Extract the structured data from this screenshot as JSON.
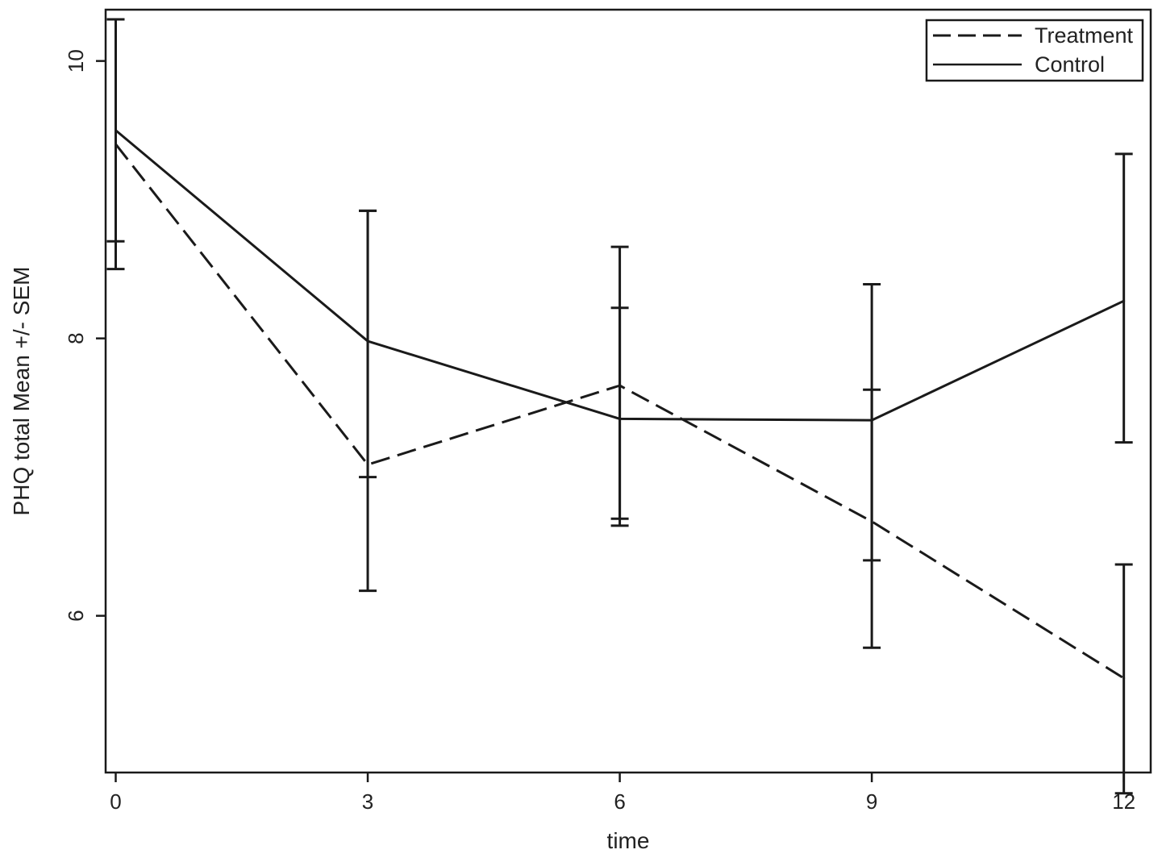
{
  "chart_data": {
    "type": "line",
    "xlabel": "time",
    "ylabel": "PHQ total Mean +/- SEM",
    "x": [
      0,
      3,
      6,
      9,
      12
    ],
    "x_ticks": [
      "0",
      "3",
      "6",
      "9",
      "12"
    ],
    "y_ticks": [
      "6",
      "8",
      "10"
    ],
    "xlim": [
      -0.12,
      12.32
    ],
    "ylim": [
      4.87,
      10.37
    ],
    "grid": false,
    "legend_position": "top-right",
    "series": [
      {
        "name": "Treatment",
        "style": "dashed",
        "color": "#1a1a1a",
        "values": [
          9.4,
          7.09,
          7.66,
          6.68,
          5.55
        ],
        "err_low": [
          8.7,
          7.0,
          6.7,
          6.4,
          4.72
        ],
        "err_high": [
          10.3,
          8.92,
          8.22,
          7.63,
          6.37
        ]
      },
      {
        "name": "Control",
        "style": "solid",
        "color": "#1a1a1a",
        "values": [
          9.5,
          7.98,
          7.42,
          7.41,
          8.27
        ],
        "err_low": [
          8.5,
          6.18,
          6.65,
          5.77,
          7.25
        ],
        "err_high": [
          10.3,
          8.92,
          8.66,
          8.39,
          9.33
        ]
      }
    ]
  }
}
